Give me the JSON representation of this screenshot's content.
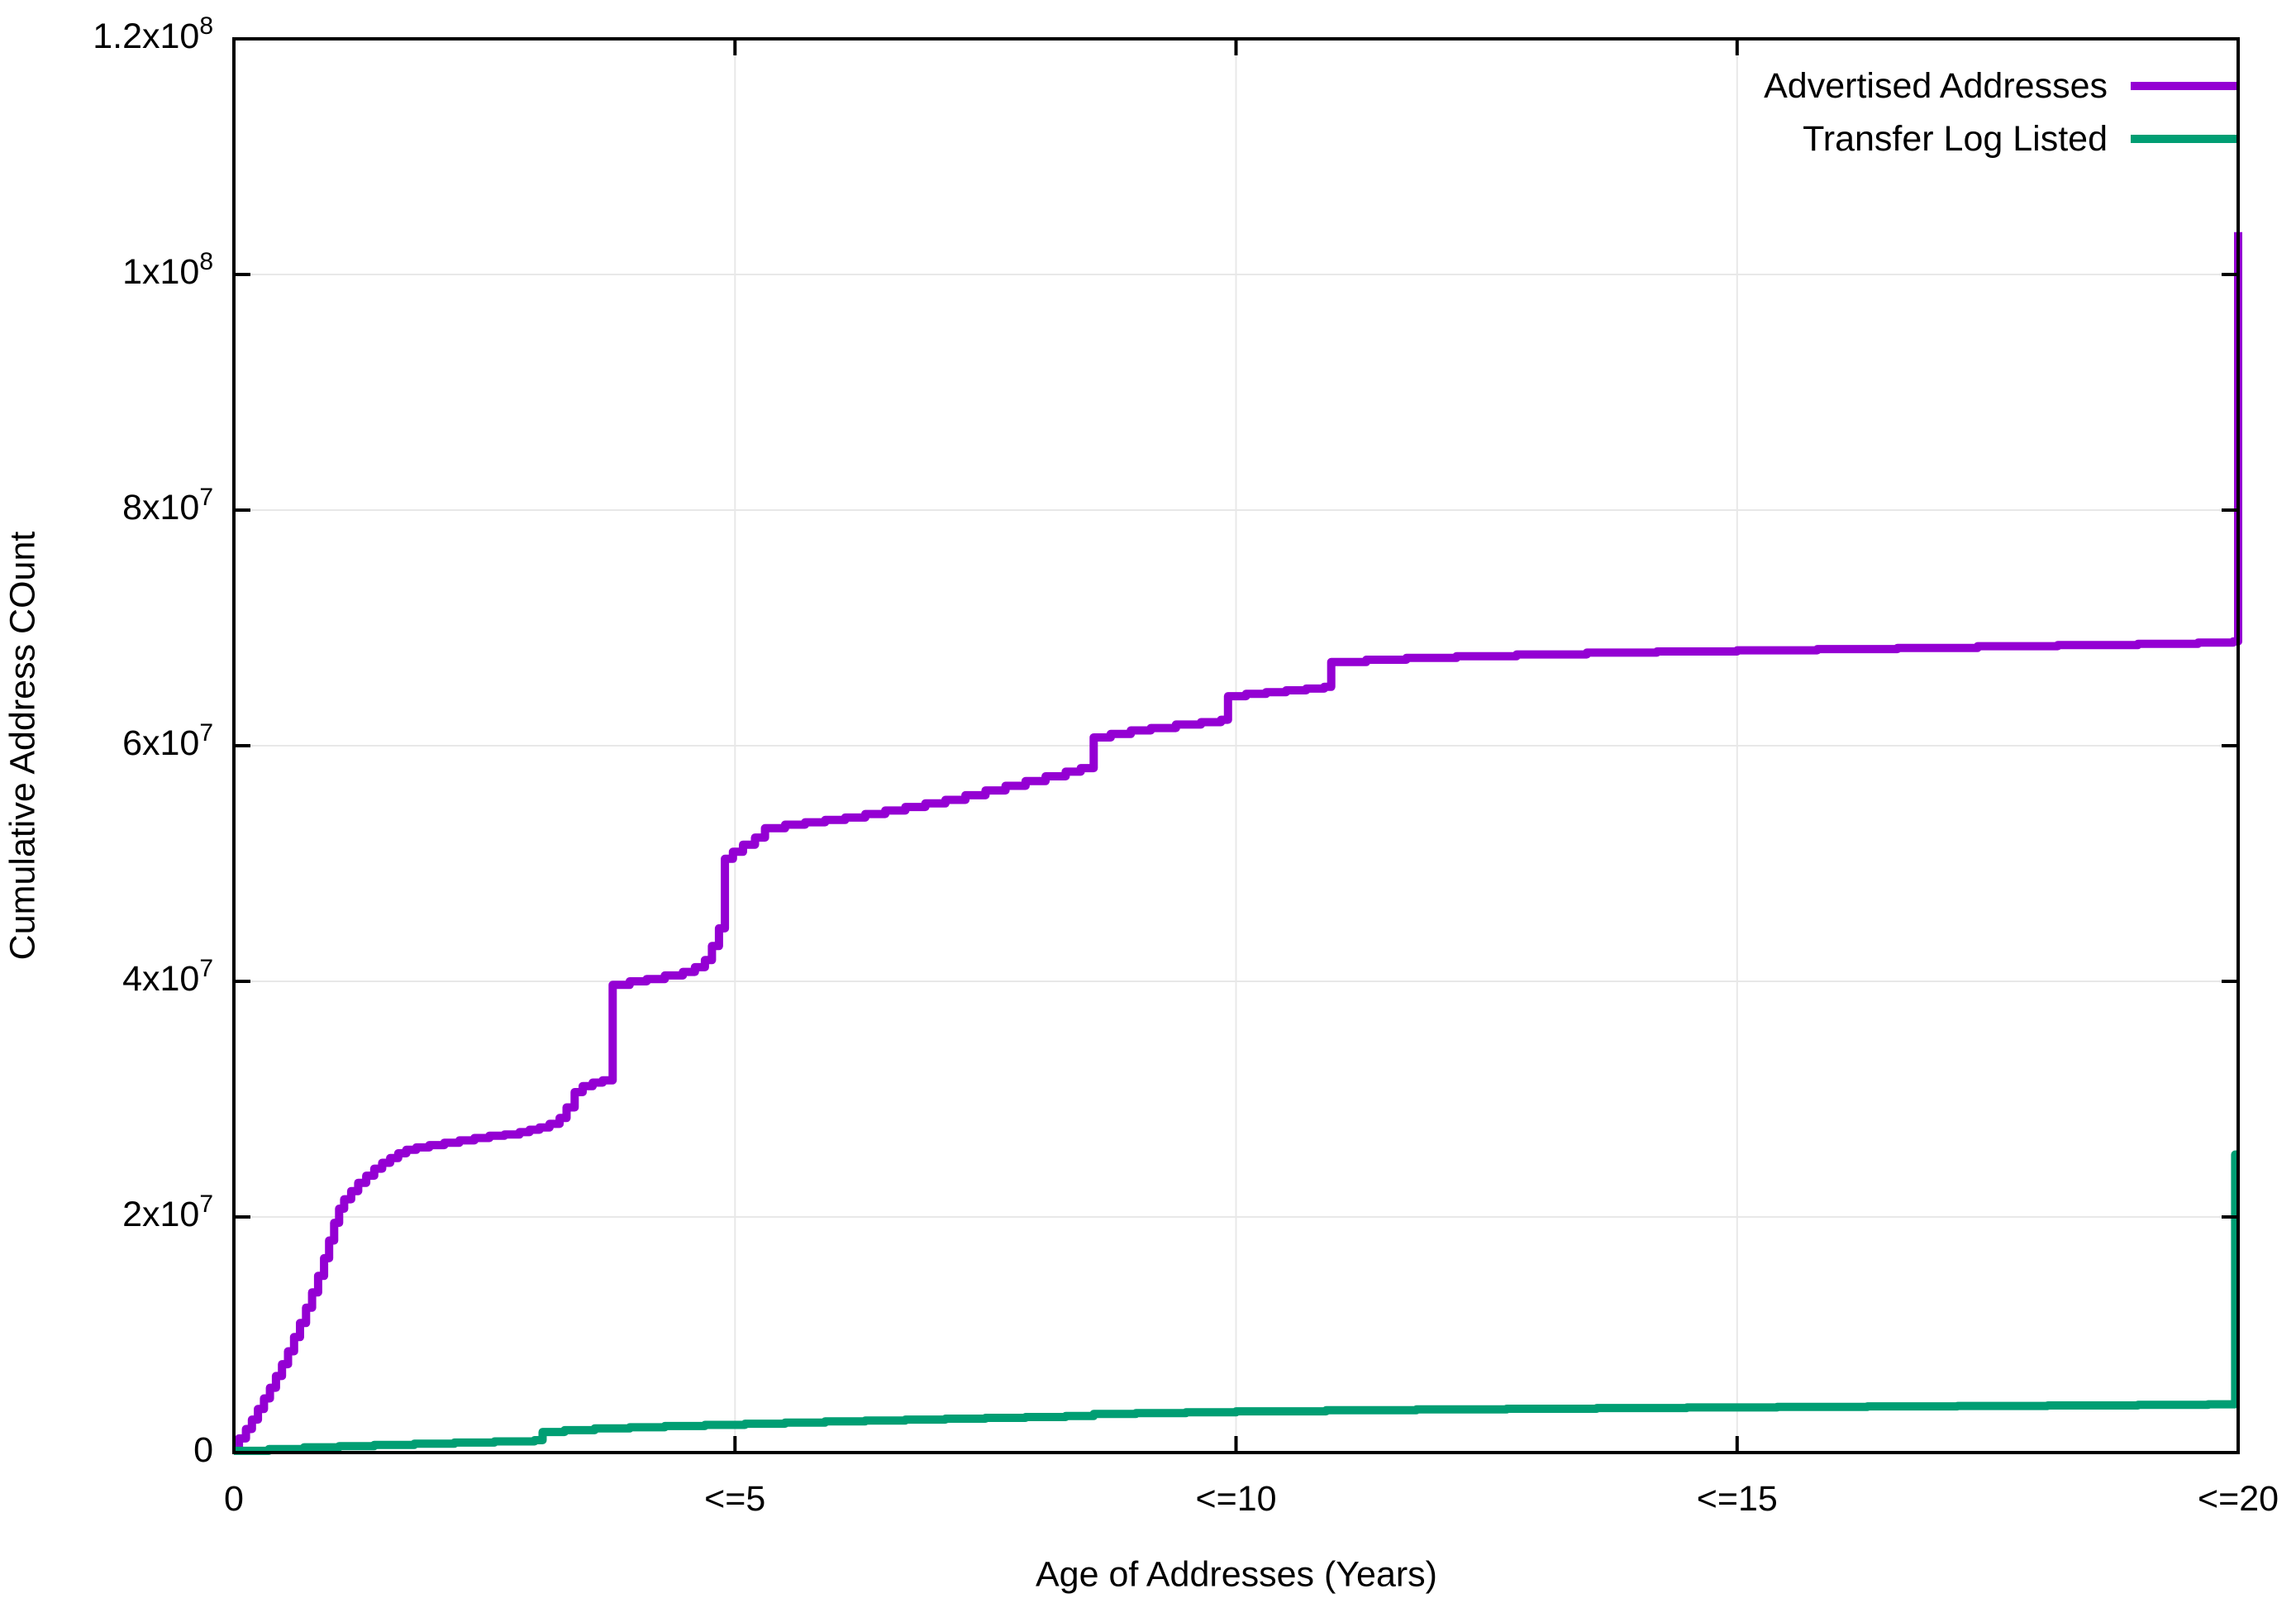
{
  "chart_data": {
    "type": "line",
    "step_mode": "step-after",
    "title": "",
    "xlabel": "Age of Addresses (Years)",
    "ylabel": "Cumulative Address COunt",
    "xlim_years": [
      0,
      20
    ],
    "ylim": [
      0,
      120000000
    ],
    "grid": true,
    "legend_position": "top-right-inside",
    "x_ticks": [
      {
        "value": 0,
        "label": "0"
      },
      {
        "value": 5,
        "label": "<=5"
      },
      {
        "value": 10,
        "label": "<=10"
      },
      {
        "value": 15,
        "label": "<=15"
      },
      {
        "value": 20,
        "label": "<=20"
      }
    ],
    "y_ticks": [
      {
        "value_millions": 0,
        "mantissa": "0",
        "exponent": ""
      },
      {
        "value_millions": 20,
        "mantissa": "2x10",
        "exponent": "7"
      },
      {
        "value_millions": 40,
        "mantissa": "4x10",
        "exponent": "7"
      },
      {
        "value_millions": 60,
        "mantissa": "6x10",
        "exponent": "7"
      },
      {
        "value_millions": 80,
        "mantissa": "8x10",
        "exponent": "7"
      },
      {
        "value_millions": 100,
        "mantissa": "1x10",
        "exponent": "8"
      },
      {
        "value_millions": 120,
        "mantissa": "1.2x10",
        "exponent": "8"
      }
    ],
    "series": [
      {
        "name": "Advertised Addresses",
        "color": "#9400d3",
        "points_year_millions": [
          [
            0,
            0.3
          ],
          [
            0.05,
            1.2
          ],
          [
            0.12,
            2.0
          ],
          [
            0.18,
            2.8
          ],
          [
            0.24,
            3.7
          ],
          [
            0.3,
            4.6
          ],
          [
            0.36,
            5.5
          ],
          [
            0.42,
            6.5
          ],
          [
            0.48,
            7.5
          ],
          [
            0.54,
            8.6
          ],
          [
            0.6,
            9.8
          ],
          [
            0.66,
            11.0
          ],
          [
            0.72,
            12.3
          ],
          [
            0.78,
            13.6
          ],
          [
            0.84,
            15.0
          ],
          [
            0.9,
            16.5
          ],
          [
            0.95,
            18.0
          ],
          [
            1.0,
            19.5
          ],
          [
            1.05,
            20.7
          ],
          [
            1.1,
            21.5
          ],
          [
            1.17,
            22.2
          ],
          [
            1.24,
            22.9
          ],
          [
            1.32,
            23.5
          ],
          [
            1.4,
            24.1
          ],
          [
            1.48,
            24.6
          ],
          [
            1.56,
            25.0
          ],
          [
            1.64,
            25.4
          ],
          [
            1.72,
            25.7
          ],
          [
            1.82,
            25.9
          ],
          [
            1.95,
            26.1
          ],
          [
            2.1,
            26.3
          ],
          [
            2.25,
            26.5
          ],
          [
            2.4,
            26.7
          ],
          [
            2.55,
            26.9
          ],
          [
            2.7,
            27.0
          ],
          [
            2.85,
            27.2
          ],
          [
            2.95,
            27.4
          ],
          [
            3.05,
            27.6
          ],
          [
            3.15,
            27.9
          ],
          [
            3.25,
            28.4
          ],
          [
            3.32,
            29.3
          ],
          [
            3.4,
            30.6
          ],
          [
            3.48,
            31.1
          ],
          [
            3.58,
            31.4
          ],
          [
            3.68,
            31.6
          ],
          [
            3.78,
            39.7
          ],
          [
            3.95,
            40.0
          ],
          [
            4.12,
            40.2
          ],
          [
            4.3,
            40.5
          ],
          [
            4.48,
            40.8
          ],
          [
            4.6,
            41.2
          ],
          [
            4.7,
            41.8
          ],
          [
            4.77,
            43.0
          ],
          [
            4.84,
            44.5
          ],
          [
            4.9,
            50.4
          ],
          [
            4.98,
            51.0
          ],
          [
            5.08,
            51.6
          ],
          [
            5.2,
            52.2
          ],
          [
            5.3,
            53.0
          ],
          [
            5.5,
            53.3
          ],
          [
            5.7,
            53.5
          ],
          [
            5.9,
            53.7
          ],
          [
            6.1,
            53.9
          ],
          [
            6.3,
            54.2
          ],
          [
            6.5,
            54.5
          ],
          [
            6.7,
            54.8
          ],
          [
            6.9,
            55.1
          ],
          [
            7.1,
            55.4
          ],
          [
            7.3,
            55.8
          ],
          [
            7.5,
            56.2
          ],
          [
            7.7,
            56.6
          ],
          [
            7.9,
            57.0
          ],
          [
            8.1,
            57.4
          ],
          [
            8.3,
            57.8
          ],
          [
            8.45,
            58.1
          ],
          [
            8.58,
            60.7
          ],
          [
            8.75,
            61.0
          ],
          [
            8.95,
            61.3
          ],
          [
            9.15,
            61.5
          ],
          [
            9.4,
            61.8
          ],
          [
            9.65,
            62.0
          ],
          [
            9.85,
            62.2
          ],
          [
            9.92,
            64.2
          ],
          [
            10.1,
            64.4
          ],
          [
            10.3,
            64.55
          ],
          [
            10.5,
            64.7
          ],
          [
            10.7,
            64.85
          ],
          [
            10.88,
            65.0
          ],
          [
            10.95,
            67.1
          ],
          [
            11.3,
            67.3
          ],
          [
            11.7,
            67.45
          ],
          [
            12.2,
            67.6
          ],
          [
            12.8,
            67.75
          ],
          [
            13.5,
            67.9
          ],
          [
            14.2,
            68.0
          ],
          [
            15.0,
            68.1
          ],
          [
            15.8,
            68.2
          ],
          [
            16.6,
            68.3
          ],
          [
            17.4,
            68.45
          ],
          [
            18.2,
            68.55
          ],
          [
            19.0,
            68.65
          ],
          [
            19.6,
            68.75
          ],
          [
            19.95,
            68.85
          ],
          [
            20.0,
            103.6
          ]
        ]
      },
      {
        "name": "Transfer Log Listed",
        "color": "#009e73",
        "points_year_millions": [
          [
            0,
            0.15
          ],
          [
            0.35,
            0.3
          ],
          [
            0.7,
            0.45
          ],
          [
            1.05,
            0.55
          ],
          [
            1.4,
            0.65
          ],
          [
            1.8,
            0.75
          ],
          [
            2.2,
            0.85
          ],
          [
            2.6,
            0.95
          ],
          [
            3.0,
            1.05
          ],
          [
            3.08,
            1.75
          ],
          [
            3.3,
            1.9
          ],
          [
            3.6,
            2.05
          ],
          [
            3.95,
            2.15
          ],
          [
            4.3,
            2.25
          ],
          [
            4.7,
            2.35
          ],
          [
            5.1,
            2.45
          ],
          [
            5.5,
            2.55
          ],
          [
            5.9,
            2.65
          ],
          [
            6.3,
            2.72
          ],
          [
            6.7,
            2.8
          ],
          [
            7.1,
            2.88
          ],
          [
            7.5,
            2.95
          ],
          [
            7.9,
            3.02
          ],
          [
            8.3,
            3.1
          ],
          [
            8.58,
            3.28
          ],
          [
            9.0,
            3.35
          ],
          [
            9.5,
            3.42
          ],
          [
            10.0,
            3.5
          ],
          [
            10.9,
            3.6
          ],
          [
            11.8,
            3.66
          ],
          [
            12.7,
            3.72
          ],
          [
            13.6,
            3.78
          ],
          [
            14.5,
            3.83
          ],
          [
            15.4,
            3.88
          ],
          [
            16.3,
            3.92
          ],
          [
            17.2,
            3.96
          ],
          [
            18.1,
            4.0
          ],
          [
            19.0,
            4.05
          ],
          [
            19.7,
            4.1
          ],
          [
            19.97,
            25.3
          ],
          [
            20,
            25.3
          ]
        ]
      }
    ]
  },
  "legend": {
    "items": [
      {
        "label": "Advertised Addresses",
        "color": "#9400d3"
      },
      {
        "label": "Transfer Log Listed",
        "color": "#009e73"
      }
    ]
  },
  "colors": {
    "background": "#ffffff",
    "axis": "#000000",
    "grid": "#e8e8e8",
    "series1": "#9400d3",
    "series2": "#009e73"
  }
}
